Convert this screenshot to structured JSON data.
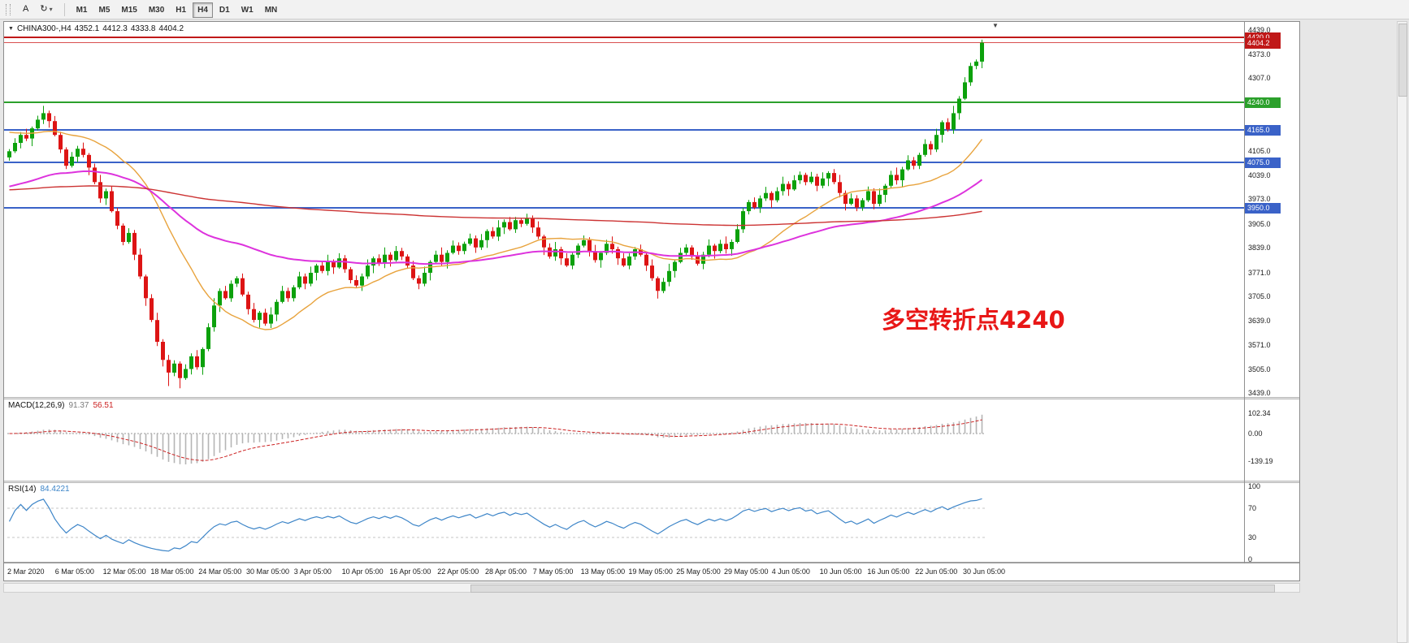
{
  "toolbar": {
    "icons": {
      "text_tool": "A",
      "cycle": "↻",
      "caret": "▾"
    },
    "timeframes": [
      "M1",
      "M5",
      "M15",
      "M30",
      "H1",
      "H4",
      "D1",
      "W1",
      "MN"
    ],
    "active_timeframe": "H4"
  },
  "icons": {
    "expander": "▼",
    "shift_marker": "▼"
  },
  "info": {
    "symbol": "CHINA300-,H4",
    "open": "4352.1",
    "high": "4412.3",
    "low": "4333.8",
    "close": "4404.2"
  },
  "annotation": {
    "text": "多空转折点4240",
    "color": "#e81717"
  },
  "colors": {
    "up": "#0ca10c",
    "down": "#dd1414",
    "ma_fast": "#e8a33d",
    "ma_mid": "#dd33dd",
    "ma_slow": "#cc3333",
    "macd_hist": "#b5b5b5",
    "macd_signal": "#cc2222",
    "rsi": "#3d85c8"
  },
  "main_axis": {
    "min": 3439,
    "max": 4439,
    "ticks": [
      "4439.0",
      "4373.0",
      "4307.0",
      "4105.0",
      "4039.0",
      "3973.0",
      "3905.0",
      "3839.0",
      "3771.0",
      "3705.0",
      "3639.0",
      "3571.0",
      "3505.0",
      "3439.0"
    ]
  },
  "hlines": [
    {
      "price": 4420.0,
      "label": "4420.0",
      "color": "#c01818",
      "width": 2,
      "badge": "#c01818"
    },
    {
      "price": 4404.2,
      "label": "4404.2",
      "color": "#d95050",
      "width": 1,
      "badge": "#c01818"
    },
    {
      "price": 4240.0,
      "label": "4240.0",
      "color": "#2ba02b",
      "width": 2,
      "badge": "#2ba02b"
    },
    {
      "price": 4165.0,
      "label": "4165.0",
      "color": "#3a62c8",
      "width": 2,
      "badge": "#3a62c8"
    },
    {
      "price": 4075.0,
      "label": "4075.0",
      "color": "#3a62c8",
      "width": 2,
      "badge": "#3a62c8"
    },
    {
      "price": 3950.0,
      "label": "3950.0",
      "color": "#3a62c8",
      "width": 2,
      "badge": "#3a62c8"
    }
  ],
  "chart_data": {
    "type": "candlestick",
    "symbol": "CHINA300-",
    "timeframe": "H4",
    "title": "CHINA300-,H4 4352.1 4412.3 4333.8 4404.2",
    "ylim": [
      3439,
      4439
    ],
    "x_labels": [
      "2 Mar 2020",
      "6 Mar 05:00",
      "12 Mar 05:00",
      "18 Mar 05:00",
      "24 Mar 05:00",
      "30 Mar 05:00",
      "3 Apr 05:00",
      "10 Apr 05:00",
      "16 Apr 05:00",
      "22 Apr 05:00",
      "28 Apr 05:00",
      "7 May 05:00",
      "13 May 05:00",
      "19 May 05:00",
      "25 May 05:00",
      "29 May 05:00",
      "4 Jun 05:00",
      "10 Jun 05:00",
      "16 Jun 05:00",
      "22 Jun 05:00",
      "30 Jun 05:00"
    ],
    "first_open": 4088,
    "closes": [
      4105,
      4128,
      4150,
      4140,
      4168,
      4192,
      4210,
      4188,
      4150,
      4110,
      4065,
      4090,
      4112,
      4095,
      4060,
      4020,
      3975,
      3995,
      3940,
      3900,
      3855,
      3880,
      3820,
      3760,
      3700,
      3640,
      3580,
      3530,
      3495,
      3520,
      3480,
      3505,
      3540,
      3510,
      3560,
      3620,
      3680,
      3720,
      3700,
      3740,
      3755,
      3710,
      3670,
      3640,
      3660,
      3630,
      3655,
      3690,
      3720,
      3700,
      3730,
      3760,
      3740,
      3770,
      3790,
      3775,
      3800,
      3785,
      3810,
      3780,
      3750,
      3735,
      3760,
      3790,
      3810,
      3795,
      3820,
      3805,
      3830,
      3815,
      3790,
      3755,
      3740,
      3770,
      3800,
      3820,
      3800,
      3825,
      3845,
      3830,
      3850,
      3865,
      3840,
      3860,
      3885,
      3870,
      3895,
      3910,
      3890,
      3915,
      3905,
      3920,
      3895,
      3870,
      3840,
      3815,
      3835,
      3810,
      3790,
      3820,
      3845,
      3860,
      3830,
      3805,
      3825,
      3850,
      3835,
      3810,
      3790,
      3815,
      3835,
      3820,
      3790,
      3755,
      3720,
      3745,
      3775,
      3800,
      3825,
      3840,
      3815,
      3795,
      3820,
      3845,
      3830,
      3850,
      3835,
      3855,
      3890,
      3940,
      3965,
      3950,
      3975,
      3990,
      3970,
      3995,
      4015,
      4000,
      4025,
      4040,
      4020,
      4035,
      4010,
      4030,
      4045,
      4020,
      3990,
      3960,
      3975,
      3950,
      3970,
      3995,
      3960,
      3985,
      4010,
      4040,
      4025,
      4055,
      4080,
      4065,
      4095,
      4125,
      4110,
      4150,
      4185,
      4165,
      4210,
      4250,
      4295,
      4340,
      4352.1,
      4404.2
    ],
    "wick_high_pattern": [
      6,
      13,
      8,
      17,
      5,
      11,
      20,
      7,
      14,
      9
    ],
    "wick_low_pattern": [
      9,
      5,
      15,
      7,
      21,
      6,
      12,
      18,
      4,
      10
    ],
    "overrides": {
      "28": {
        "low": 3458
      },
      "30": {
        "low": 3452
      },
      "171": {
        "high": 4412.3,
        "low": 4333.8,
        "close": 4404.2
      }
    },
    "ma_lines": [
      {
        "name": "fast-orange",
        "type": "sma",
        "period": 21,
        "pad": 4160,
        "color_key": "ma_fast",
        "width": 1.4
      },
      {
        "name": "mid-magenta",
        "type": "ema",
        "alpha": 0.03,
        "seed": 4005,
        "color_key": "ma_mid",
        "width": 2
      },
      {
        "name": "slow-red",
        "type": "ema",
        "alpha": 0.006,
        "seed": 3998,
        "color_key": "ma_slow",
        "width": 1.4
      }
    ],
    "macd": {
      "label": "MACD(12,26,9)",
      "values": [
        "91.37",
        "56.51"
      ],
      "fast": 12,
      "slow": 26,
      "signal": 9,
      "axis": [
        {
          "v": 102.34,
          "label": "102.34"
        },
        {
          "v": 0,
          "label": "0.00"
        },
        {
          "v": -139.19,
          "label": "-139.19"
        }
      ]
    },
    "rsi": {
      "label": "RSI(14)",
      "value": "84.4221",
      "period": 14,
      "levels": [
        70,
        30
      ],
      "axis": [
        {
          "v": 100,
          "label": "100"
        },
        {
          "v": 70,
          "label": "70"
        },
        {
          "v": 30,
          "label": "30"
        },
        {
          "v": 0,
          "label": "0"
        }
      ]
    }
  }
}
